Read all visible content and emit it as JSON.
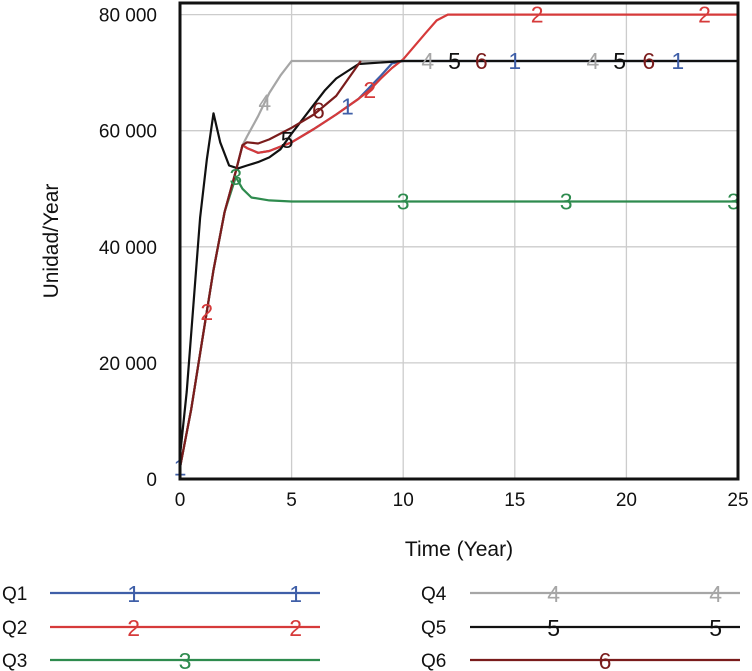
{
  "chart_data": {
    "type": "line",
    "title": "",
    "xlabel": "Time (Year)",
    "ylabel": "Unidad/Year",
    "xlim": [
      0,
      25
    ],
    "ylim": [
      0,
      82000
    ],
    "xticks": [
      0,
      5,
      10,
      15,
      20,
      25
    ],
    "xtick_labels": [
      "0",
      "5",
      "10",
      "15",
      "20",
      "25"
    ],
    "yticks": [
      0,
      20000,
      40000,
      60000,
      80000
    ],
    "ytick_labels": [
      "0",
      "20 000",
      "40 000",
      "60 000",
      "80 000"
    ],
    "grid": true,
    "legend_position": "bottom",
    "series": [
      {
        "name": "Q1",
        "marker": "1",
        "color": "#3f5fa8",
        "x": [
          0,
          0.5,
          1,
          1.5,
          2,
          2.5,
          2.8,
          3.0,
          3.5,
          4,
          5,
          6,
          7,
          8,
          9,
          9.5,
          10,
          12,
          15,
          20,
          25
        ],
        "y": [
          2000,
          12000,
          24000,
          36000,
          46000,
          53000,
          57500,
          57000,
          56200,
          56500,
          58000,
          60300,
          62800,
          65500,
          69500,
          71600,
          72000,
          72000,
          72000,
          72000,
          72000
        ],
        "marker_x": [
          0,
          7.5,
          15,
          22.3
        ]
      },
      {
        "name": "Q2",
        "marker": "2",
        "color": "#d63a3a",
        "x": [
          0,
          0.5,
          1,
          1.5,
          2,
          2.5,
          2.8,
          3.0,
          3.5,
          4,
          5,
          6,
          7,
          8,
          8.5,
          9,
          9.5,
          10,
          11,
          11.5,
          12,
          15,
          20,
          25
        ],
        "y": [
          2000,
          12000,
          24000,
          36000,
          46000,
          53000,
          57500,
          57000,
          56200,
          56500,
          58000,
          60300,
          62800,
          65500,
          67000,
          69000,
          70800,
          72300,
          76800,
          79000,
          80000,
          80000,
          80000,
          80000
        ],
        "marker_x": [
          1.2,
          8.5,
          16,
          23.5
        ]
      },
      {
        "name": "Q3",
        "marker": "3",
        "color": "#2e8b4e",
        "x": [
          0,
          0.5,
          1,
          1.5,
          2,
          2.5,
          2.8,
          3.2,
          4,
          5,
          10,
          15,
          20,
          25
        ],
        "y": [
          2000,
          12000,
          24000,
          36000,
          46000,
          52000,
          50000,
          48500,
          48000,
          47800,
          47800,
          47800,
          47800,
          47800
        ],
        "marker_x": [
          2.5,
          10,
          17.3,
          24.8
        ]
      },
      {
        "name": "Q4",
        "marker": "4",
        "color": "#a6a6a6",
        "x": [
          0,
          0.5,
          1,
          1.5,
          2,
          2.5,
          2.8,
          3.0,
          3.5,
          4,
          4.5,
          5,
          6,
          8,
          10,
          15,
          20,
          25
        ],
        "y": [
          2000,
          12000,
          24000,
          36000,
          46000,
          53000,
          57500,
          59000,
          62500,
          66500,
          69500,
          72000,
          72000,
          72000,
          72000,
          72000,
          72000,
          72000
        ],
        "marker_x": [
          3.8,
          11.1,
          18.5
        ]
      },
      {
        "name": "Q5",
        "marker": "5",
        "color": "#111111",
        "x": [
          0,
          0.3,
          0.6,
          0.9,
          1.2,
          1.5,
          1.8,
          2.2,
          2.6,
          3.0,
          3.5,
          4,
          4.5,
          5,
          5.5,
          6,
          6.5,
          7,
          8,
          10,
          15,
          20,
          25
        ],
        "y": [
          4000,
          15000,
          30000,
          45000,
          55000,
          63000,
          58000,
          54000,
          53500,
          54000,
          54600,
          55400,
          56800,
          59500,
          62000,
          64500,
          67000,
          69000,
          71500,
          72000,
          72000,
          72000,
          72000
        ],
        "marker_x": [
          4.8,
          12.3,
          19.7
        ]
      },
      {
        "name": "Q6",
        "marker": "6",
        "color": "#7a1c1c",
        "x": [
          0,
          0.5,
          1,
          1.5,
          2,
          2.5,
          2.8,
          3.0,
          3.5,
          4,
          5,
          6,
          7,
          8.1
        ],
        "y": [
          2000,
          12000,
          24000,
          36000,
          46000,
          53000,
          57500,
          58000,
          57800,
          58500,
          60500,
          62800,
          66000,
          72000
        ],
        "marker_x": [
          6.2,
          13.5,
          21
        ]
      }
    ]
  },
  "legend": [
    {
      "label": "Q1",
      "marker": "1"
    },
    {
      "label": "Q2",
      "marker": "2"
    },
    {
      "label": "Q3",
      "marker": "3"
    },
    {
      "label": "Q4",
      "marker": "4"
    },
    {
      "label": "Q5",
      "marker": "5"
    },
    {
      "label": "Q6",
      "marker": "6"
    }
  ]
}
